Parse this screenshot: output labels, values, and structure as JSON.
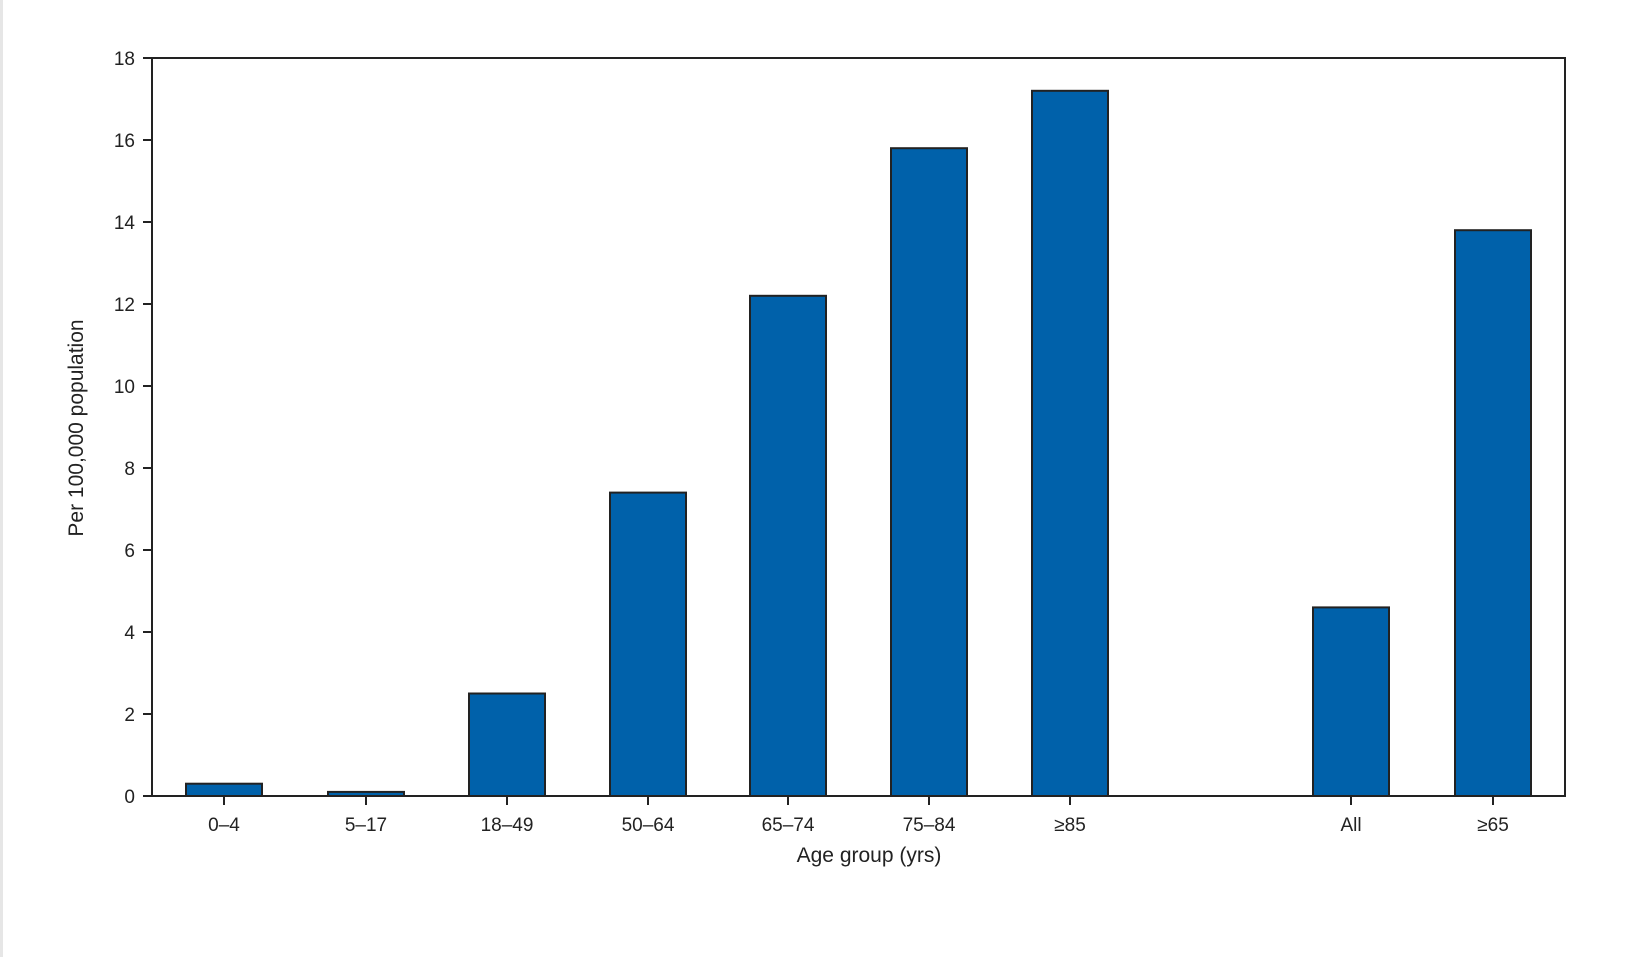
{
  "chart_data": {
    "type": "bar",
    "categories": [
      "0–4",
      "5–17",
      "18–49",
      "50–64",
      "65–74",
      "75–84",
      "≥85",
      "All",
      "≥65"
    ],
    "values": [
      0.3,
      0.1,
      2.5,
      7.4,
      12.2,
      15.8,
      17.2,
      4.6,
      13.8
    ],
    "title": "",
    "xlabel": "Age group (yrs)",
    "ylabel": "Per 100,000 population",
    "ylim": [
      0,
      18
    ],
    "yticks": [
      0,
      2,
      4,
      6,
      8,
      10,
      12,
      14,
      16,
      18
    ],
    "grid": false,
    "bar_color": "#0061AA",
    "bar_edge_color": "#222222"
  }
}
